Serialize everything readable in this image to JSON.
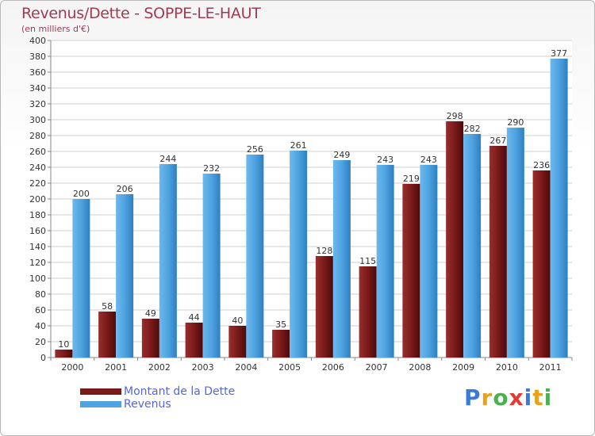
{
  "header": {
    "title": "Revenus/Dette - SOPPE-LE-HAUT",
    "subtitle": "(en milliers d'€)"
  },
  "chart_data": {
    "type": "bar",
    "categories": [
      "2000",
      "2001",
      "2002",
      "2003",
      "2004",
      "2005",
      "2006",
      "2007",
      "2008",
      "2009",
      "2010",
      "2011"
    ],
    "series": [
      {
        "name": "Montant de la Dette",
        "color": "#7a1a1a",
        "values": [
          10,
          58,
          49,
          44,
          40,
          35,
          128,
          115,
          219,
          298,
          267,
          236
        ]
      },
      {
        "name": "Revenus",
        "color": "#4fa3e0",
        "values": [
          200,
          206,
          244,
          232,
          256,
          261,
          249,
          243,
          243,
          282,
          290,
          377
        ]
      }
    ],
    "ylim": [
      0,
      400
    ],
    "ytick_step": 20,
    "grid": true,
    "legend": "bottom-left"
  },
  "brand": {
    "letters": [
      "P",
      "r",
      "o",
      "x",
      "i",
      "t",
      "i"
    ],
    "colors": [
      "#3a7bd5",
      "#e8a21c",
      "#4caf50",
      "#e53935",
      "#3a7bd5",
      "#e8a21c",
      "#4caf50"
    ]
  }
}
